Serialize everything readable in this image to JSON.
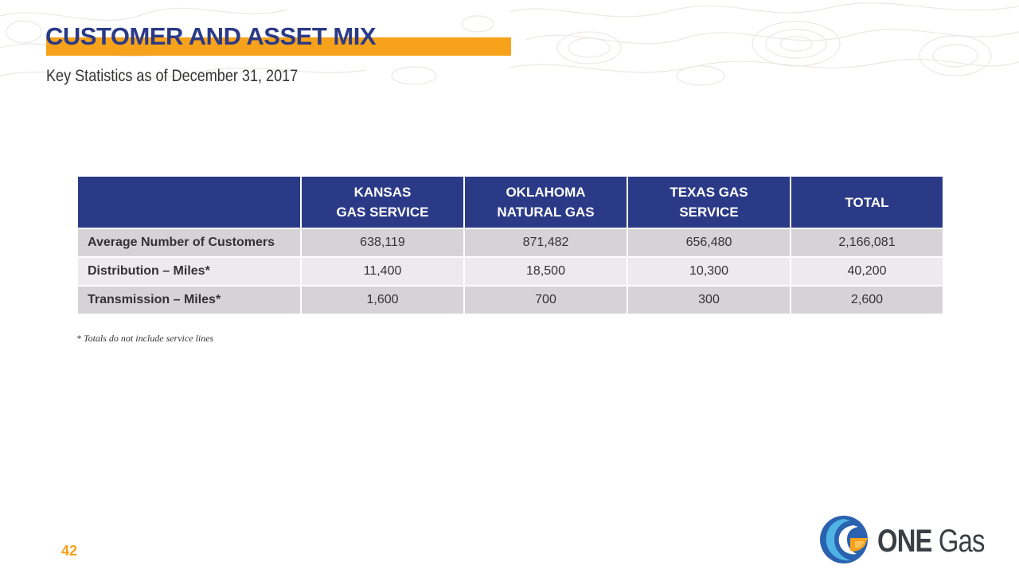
{
  "header": {
    "title": "CUSTOMER AND ASSET MIX",
    "subtitle": "Key Statistics as of December 31, 2017"
  },
  "table": {
    "columns": [
      {
        "line1": "",
        "line2": ""
      },
      {
        "line1": "KANSAS",
        "line2": "GAS SERVICE"
      },
      {
        "line1": "OKLAHOMA",
        "line2": "NATURAL GAS"
      },
      {
        "line1": "TEXAS GAS",
        "line2": "SERVICE"
      },
      {
        "line1": "TOTAL",
        "line2": ""
      }
    ],
    "rows": [
      {
        "label": "Average Number of Customers",
        "values": [
          "638,119",
          "871,482",
          "656,480",
          "2,166,081"
        ]
      },
      {
        "label": "Distribution – Miles*",
        "values": [
          "11,400",
          "18,500",
          "10,300",
          "40,200"
        ]
      },
      {
        "label": "Transmission – Miles*",
        "values": [
          "1,600",
          "700",
          "300",
          "2,600"
        ]
      }
    ]
  },
  "footnote": "* Totals do not include service lines",
  "footer": {
    "page_number": "42",
    "logo_text_bold": "ONE",
    "logo_text_light": "Gas"
  },
  "colors": {
    "navy": "#2b3a86",
    "orange": "#f7a21b",
    "row_dark": "#d6d3d6",
    "row_light": "#eceaec",
    "topo_lines": "#ece9e3"
  },
  "icons": {
    "logo_mark": "one-gas-flame-logo-icon",
    "background": "topographic-map-pattern"
  }
}
